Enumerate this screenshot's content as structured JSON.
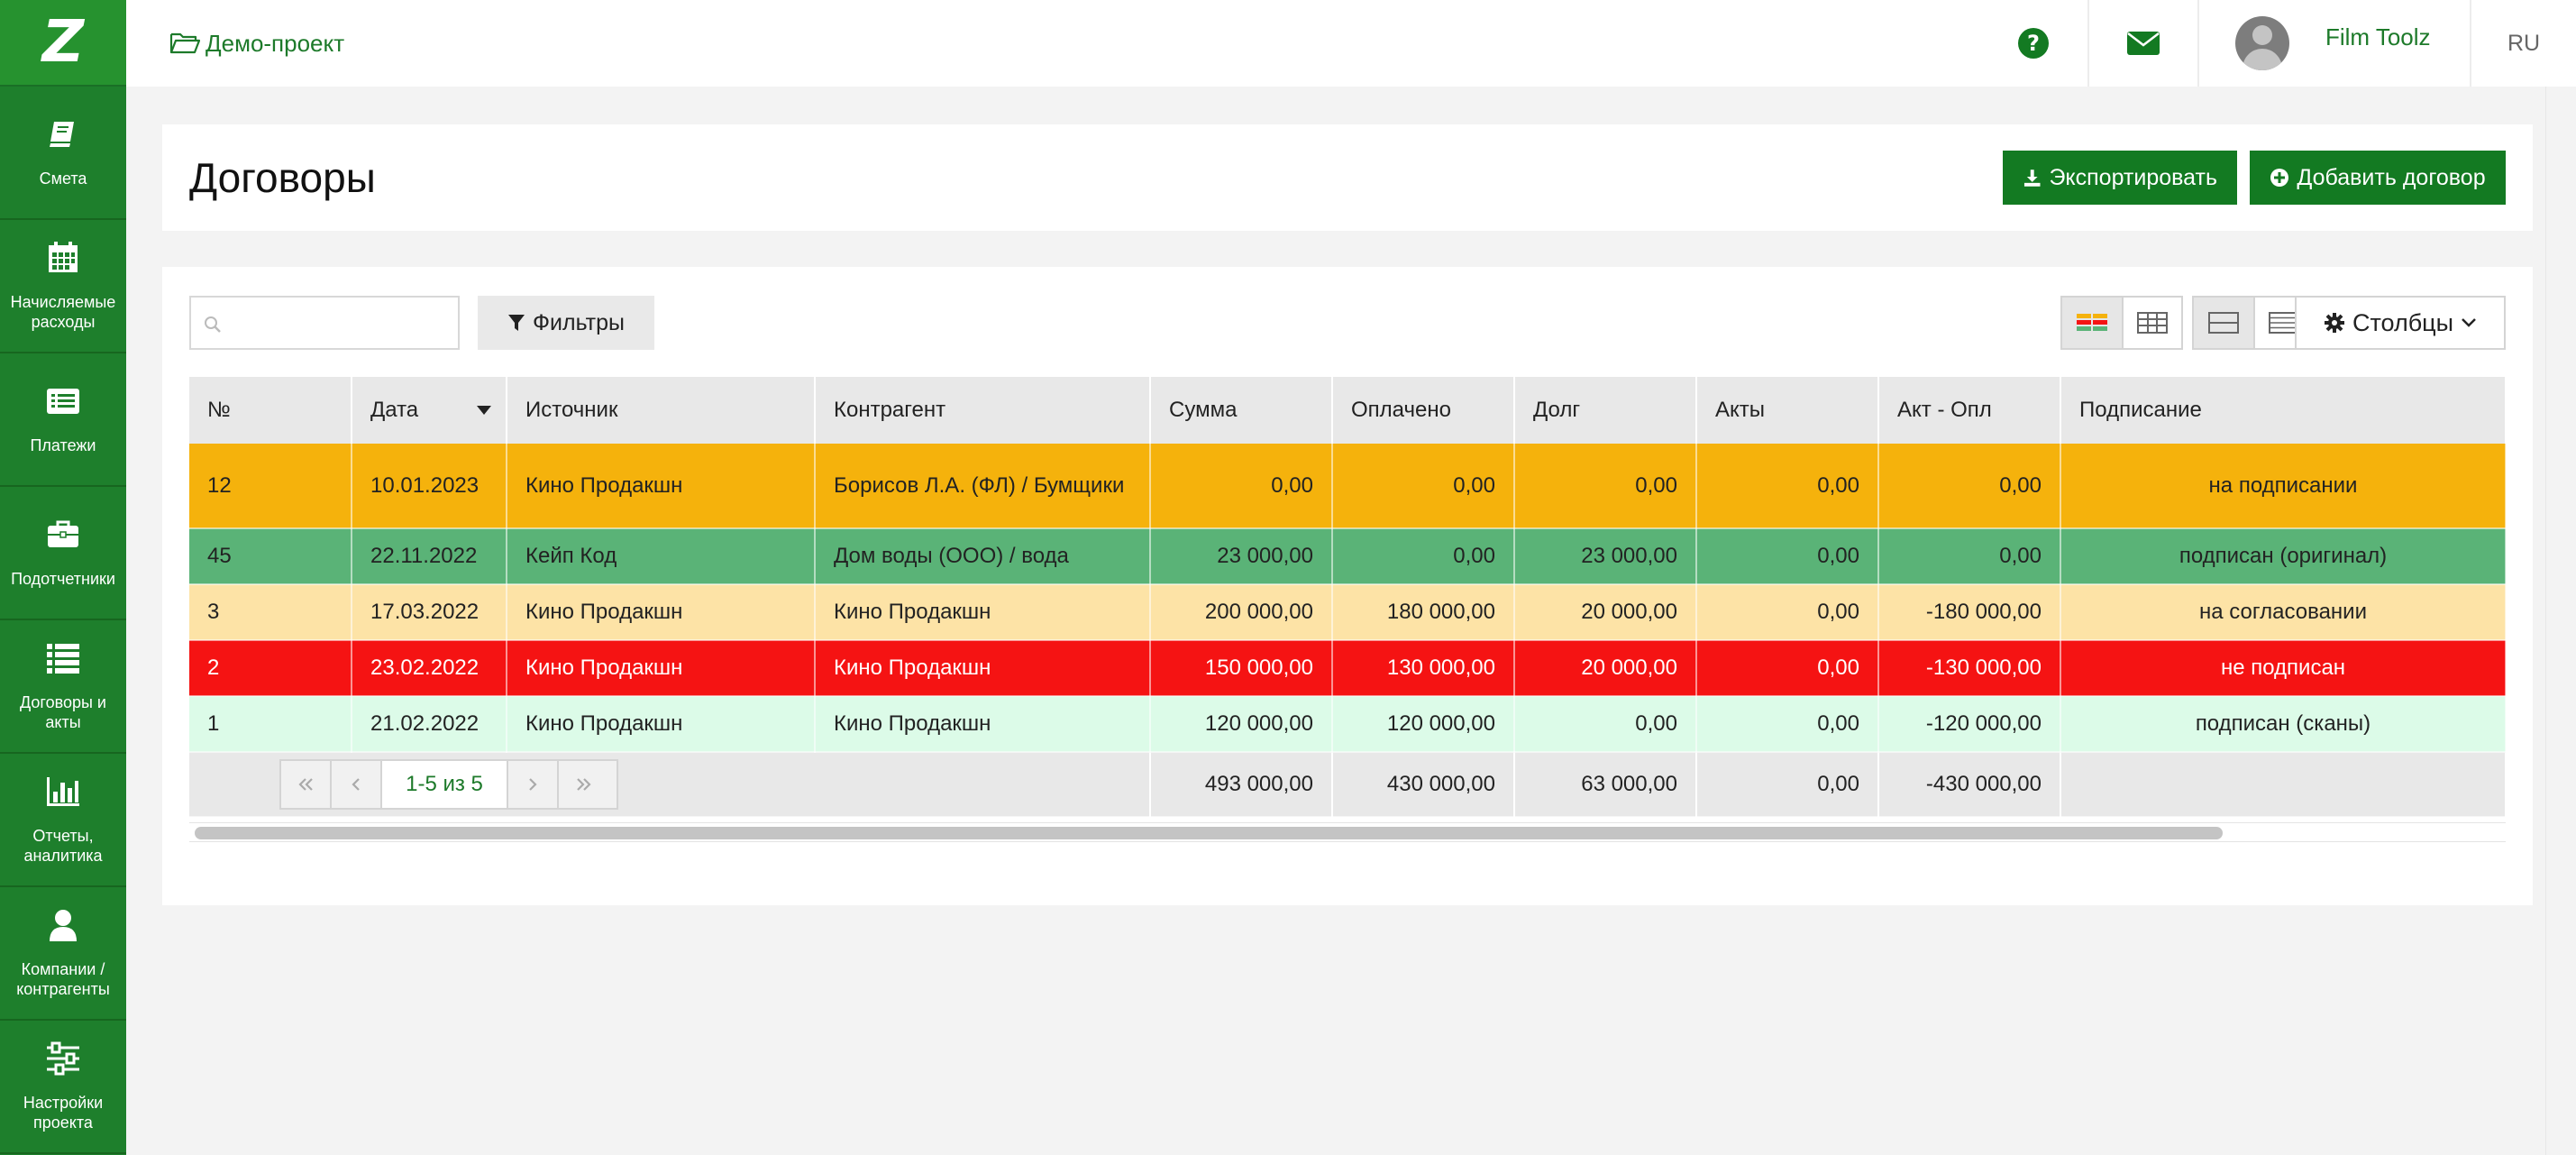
{
  "app": {
    "logo_glyph": "Z",
    "brand_color": "#1e7f2c"
  },
  "sidebar": {
    "items": [
      {
        "label": "Смета",
        "icon": "book-icon"
      },
      {
        "label": "Начисляемые расходы",
        "icon": "calendar-icon"
      },
      {
        "label": "Платежи",
        "icon": "list-alt-icon"
      },
      {
        "label": "Подотчетники",
        "icon": "briefcase-icon"
      },
      {
        "label": "Договоры и акты",
        "icon": "list-icon"
      },
      {
        "label": "Отчеты, аналитика",
        "icon": "bar-chart-icon"
      },
      {
        "label": "Компании / контрагенты",
        "icon": "user-icon"
      },
      {
        "label": "Настройки проекта",
        "icon": "sliders-icon"
      }
    ]
  },
  "topbar": {
    "project": "Демо-проект",
    "user_name": "Film Toolz",
    "lang": "RU"
  },
  "header": {
    "title": "Договоры",
    "export_label": "Экспортировать",
    "add_label": "Добавить договор"
  },
  "toolbar": {
    "search_value": "",
    "filter_label": "Фильтры",
    "columns_label": "Столбцы"
  },
  "table": {
    "columns": [
      "№",
      "Дата",
      "Источник",
      "Контрагент",
      "Сумма",
      "Оплачено",
      "Долг",
      "Акты",
      "Акт - Опл",
      "Подписание"
    ],
    "rows": [
      {
        "num": "12",
        "date": "10.01.2023",
        "source": "Кино Продакшн",
        "counterparty": "Борисов Л.А. (ФЛ) / Бумщики",
        "sum": "0,00",
        "paid": "0,00",
        "debt": "0,00",
        "acts": "0,00",
        "act_paid": "0,00",
        "signing": "на подписании",
        "color": "#f5b20c"
      },
      {
        "num": "45",
        "date": "22.11.2022",
        "source": "Кейп Код",
        "counterparty": "Дом воды (ООО) / вода",
        "sum": "23 000,00",
        "paid": "0,00",
        "debt": "23 000,00",
        "acts": "0,00",
        "act_paid": "0,00",
        "signing": "подписан (оригинал)",
        "color": "#5ab377"
      },
      {
        "num": "3",
        "date": "17.03.2022",
        "source": "Кино Продакшн",
        "counterparty": "Кино Продакшн",
        "sum": "200 000,00",
        "paid": "180 000,00",
        "debt": "20 000,00",
        "acts": "0,00",
        "act_paid": "-180 000,00",
        "signing": "на согласовании",
        "color": "#fde3a6"
      },
      {
        "num": "2",
        "date": "23.02.2022",
        "source": "Кино Продакшн",
        "counterparty": "Кино Продакшн",
        "sum": "150 000,00",
        "paid": "130 000,00",
        "debt": "20 000,00",
        "acts": "0,00",
        "act_paid": "-130 000,00",
        "signing": "не подписан",
        "color": "#f51313"
      },
      {
        "num": "1",
        "date": "21.02.2022",
        "source": "Кино Продакшн",
        "counterparty": "Кино Продакшн",
        "sum": "120 000,00",
        "paid": "120 000,00",
        "debt": "0,00",
        "acts": "0,00",
        "act_paid": "-120 000,00",
        "signing": "подписан (сканы)",
        "color": "#dcfbe8"
      }
    ],
    "totals": {
      "sum": "493 000,00",
      "paid": "430 000,00",
      "debt": "63 000,00",
      "acts": "0,00",
      "act_paid": "-430 000,00"
    },
    "pager": "1-5 из 5"
  }
}
